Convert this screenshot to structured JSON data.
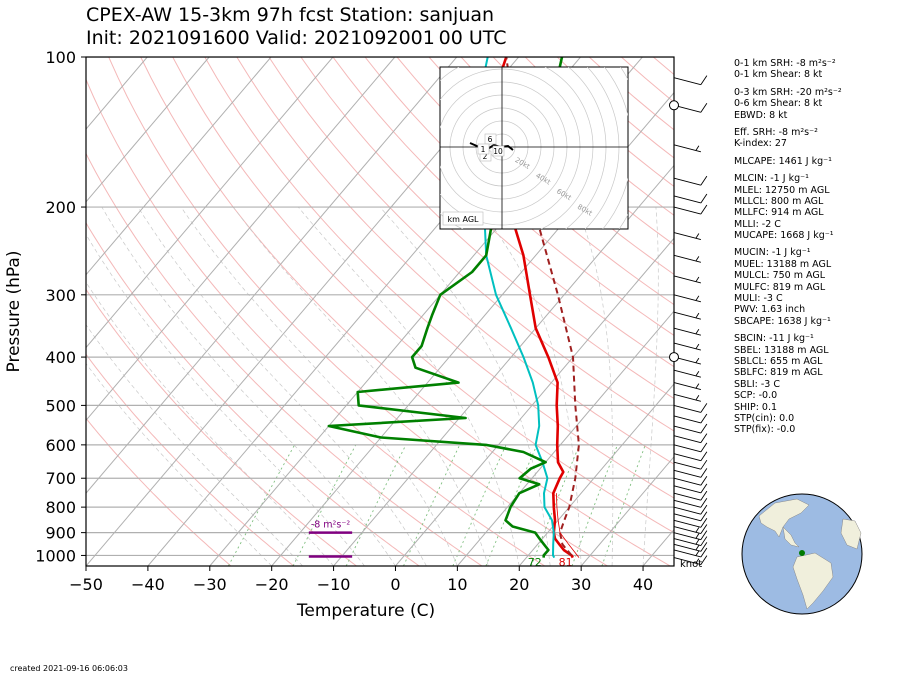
{
  "header": {
    "line1": "CPEX-AW 15-3km  97h fcst  Station: sanjuan",
    "line2": "Init: 2021091600  Valid: 2021092001 00 UTC"
  },
  "chart_data": {
    "type": "line",
    "title": "CPEX-AW 15-3km  97h fcst  Station: sanjuan",
    "xlabel": "Temperature (C)",
    "ylabel": "Pressure (hPa)",
    "xlim": [
      -50,
      45
    ],
    "ylim": [
      1050,
      100
    ],
    "yscale": "log",
    "x_ticks": [
      "−50",
      "−40",
      "−30",
      "−20",
      "−10",
      "0",
      "10",
      "20",
      "30",
      "40"
    ],
    "y_ticks": [
      "100",
      "200",
      "300",
      "400",
      "500",
      "600",
      "700",
      "800",
      "900",
      "1000"
    ],
    "series": [
      {
        "color": "#e00000",
        "values": [
          [
            1010,
            27.5
          ],
          [
            1000,
            27
          ],
          [
            975,
            25
          ],
          [
            950,
            23.5
          ],
          [
            925,
            22
          ],
          [
            900,
            21
          ],
          [
            850,
            19.5
          ],
          [
            800,
            17.5
          ],
          [
            750,
            15.5
          ],
          [
            700,
            14.5
          ],
          [
            680,
            14.2
          ],
          [
            650,
            12
          ],
          [
            600,
            9.5
          ],
          [
            550,
            7
          ],
          [
            500,
            4
          ],
          [
            450,
            1
          ],
          [
            400,
            -4
          ],
          [
            350,
            -10
          ],
          [
            300,
            -15.5
          ],
          [
            250,
            -22
          ],
          [
            200,
            -31
          ],
          [
            175,
            -36
          ],
          [
            150,
            -42
          ],
          [
            125,
            -48
          ],
          [
            100,
            -52
          ]
        ]
      },
      {
        "color": "#00c0c0",
        "values": [
          [
            1010,
            24.5
          ],
          [
            1000,
            24
          ],
          [
            950,
            22.5
          ],
          [
            900,
            21
          ],
          [
            850,
            19
          ],
          [
            800,
            16
          ],
          [
            750,
            14
          ],
          [
            700,
            12.5
          ],
          [
            650,
            9.5
          ],
          [
            600,
            6
          ],
          [
            550,
            4
          ],
          [
            500,
            1
          ],
          [
            450,
            -3
          ],
          [
            400,
            -8
          ],
          [
            350,
            -14
          ],
          [
            300,
            -21
          ],
          [
            250,
            -28
          ],
          [
            200,
            -35
          ],
          [
            175,
            -40
          ],
          [
            150,
            -45
          ],
          [
            125,
            -50
          ],
          [
            100,
            -55
          ]
        ]
      },
      {
        "color": "#008000",
        "values": [
          [
            1010,
            22.8
          ],
          [
            1000,
            22.5
          ],
          [
            975,
            22.5
          ],
          [
            950,
            21
          ],
          [
            925,
            19.5
          ],
          [
            900,
            18
          ],
          [
            875,
            13.5
          ],
          [
            850,
            11.5
          ],
          [
            800,
            10.5
          ],
          [
            750,
            10
          ],
          [
            720,
            12
          ],
          [
            700,
            8
          ],
          [
            670,
            8.5
          ],
          [
            650,
            10
          ],
          [
            620,
            5
          ],
          [
            600,
            -2
          ],
          [
            580,
            -20
          ],
          [
            550,
            -30
          ],
          [
            530,
            -9
          ],
          [
            500,
            -28
          ],
          [
            470,
            -30
          ],
          [
            450,
            -15
          ],
          [
            420,
            -24
          ],
          [
            400,
            -26
          ],
          [
            380,
            -26
          ],
          [
            350,
            -27.5
          ],
          [
            330,
            -28.5
          ],
          [
            300,
            -30
          ],
          [
            270,
            -28
          ],
          [
            250,
            -28
          ],
          [
            220,
            -31
          ],
          [
            200,
            -34
          ],
          [
            180,
            -35
          ],
          [
            160,
            -32
          ],
          [
            140,
            -36
          ],
          [
            120,
            -39
          ],
          [
            100,
            -43
          ]
        ]
      },
      {
        "color": "#a02020",
        "values": [
          [
            1000,
            27
          ],
          [
            950,
            24
          ],
          [
            900,
            22
          ],
          [
            850,
            21
          ],
          [
            800,
            20
          ],
          [
            700,
            17
          ],
          [
            600,
            13
          ],
          [
            500,
            7
          ],
          [
            400,
            0
          ],
          [
            300,
            -11
          ],
          [
            200,
            -27
          ],
          [
            150,
            -38
          ],
          [
            100,
            -52
          ]
        ]
      }
    ],
    "surface_labels": [
      {
        "text": "72",
        "color": "#008000",
        "x": 22.5
      },
      {
        "text": "81",
        "color": "#e00000",
        "x": 27.5
      }
    ],
    "srh_bars": [
      {
        "label": "-8 m²s⁻²",
        "pressure": 900,
        "x1": -14,
        "x2": -7
      },
      {
        "pressure": 1005,
        "x1": -14,
        "x2": -7
      }
    ],
    "wind_barbs": [
      {
        "p": 1010,
        "spd": 12
      },
      {
        "p": 975,
        "spd": 12
      },
      {
        "p": 950,
        "spd": 12
      },
      {
        "p": 925,
        "spd": 12
      },
      {
        "p": 900,
        "spd": 12
      },
      {
        "p": 875,
        "spd": 12
      },
      {
        "p": 850,
        "spd": 10
      },
      {
        "p": 825,
        "spd": 10
      },
      {
        "p": 800,
        "spd": 10
      },
      {
        "p": 775,
        "spd": 10
      },
      {
        "p": 750,
        "spd": 10
      },
      {
        "p": 725,
        "spd": 10
      },
      {
        "p": 700,
        "spd": 10
      },
      {
        "p": 675,
        "spd": 10
      },
      {
        "p": 650,
        "spd": 10
      },
      {
        "p": 625,
        "spd": 10
      },
      {
        "p": 600,
        "spd": 10
      },
      {
        "p": 575,
        "spd": 10
      },
      {
        "p": 550,
        "spd": 10
      },
      {
        "p": 525,
        "spd": 10
      },
      {
        "p": 500,
        "spd": 10
      },
      {
        "p": 475,
        "spd": 5
      },
      {
        "p": 450,
        "spd": 5
      },
      {
        "p": 425,
        "spd": 5
      },
      {
        "p": 400,
        "spd": 5
      },
      {
        "p": 375,
        "spd": 5
      },
      {
        "p": 350,
        "spd": 5
      },
      {
        "p": 325,
        "spd": 5
      },
      {
        "p": 300,
        "spd": 5
      },
      {
        "p": 275,
        "spd": 5
      },
      {
        "p": 250,
        "spd": 5
      },
      {
        "p": 225,
        "spd": 5
      },
      {
        "p": 200,
        "spd": 10
      },
      {
        "p": 190,
        "spd": 10
      },
      {
        "p": 175,
        "spd": 10
      },
      {
        "p": 150,
        "spd": 5
      },
      {
        "p": 125,
        "spd": 10
      },
      {
        "p": 110,
        "spd": 10
      }
    ],
    "hodograph": {
      "ring_labels": [
        "20kt",
        "40kt",
        "60kt",
        "80kt"
      ],
      "height_labels": [
        "6",
        "10",
        "2",
        "1"
      ],
      "corner_label": "km AGL"
    },
    "x_unit_label": "knot"
  },
  "indices": [
    "0-1 km SRH: -8 m²s⁻²",
    "0-1 km Shear: 8 kt",
    "",
    "0-3 km SRH: -20 m²s⁻²",
    "0-6 km Shear: 8 kt",
    "EBWD: 8 kt",
    "",
    "Eff. SRH: -8 m²s⁻²",
    "K-index: 27",
    "",
    "MLCAPE: 1461 J kg⁻¹",
    "",
    "MLCIN: -1 J kg⁻¹",
    "MLEL: 12750 m AGL",
    "MLLCL: 800 m AGL",
    "MLLFC: 914 m AGL",
    "MLLI: -2 C",
    "MUCAPE: 1668 J kg⁻¹",
    "",
    "MUCIN: -1 J kg⁻¹",
    "MUEL: 13188 m AGL",
    "MULCL: 750 m AGL",
    "MULFC: 819 m AGL",
    "MULI: -3 C",
    "PWV: 1.63 inch",
    "SBCAPE: 1638 J kg⁻¹",
    "",
    "SBCIN: -11 J kg⁻¹",
    "SBEL: 13188 m AGL",
    "SBLCL: 655 m AGL",
    "SBLFC: 819 m AGL",
    "SBLI: -3 C",
    "SCP: -0.0",
    "SHIP: 0.1",
    "STP(cin): 0.0",
    "STP(fix): -0.0"
  ],
  "footer": {
    "created": "created 2021-09-16 06:06:03"
  },
  "colors": {
    "temperature": "#e00000",
    "dewpoint": "#008000",
    "virtual": "#00c0c0",
    "parcel": "#a02020",
    "srh": "#800080",
    "ocean": "#9dbbe3",
    "land": "#f0efdc"
  }
}
